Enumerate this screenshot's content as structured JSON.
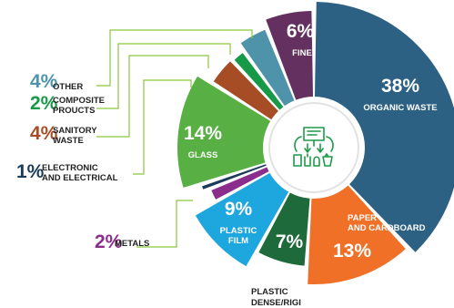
{
  "chart_data": {
    "type": "pie",
    "title": "",
    "slices": [
      {
        "label": "ORGANIC WASTE",
        "value": 38,
        "pct_text": "38%",
        "color": "#2d6184"
      },
      {
        "label": "PAPER AND CARDBOARD",
        "value": 13,
        "pct_text": "13%",
        "color": "#f07027"
      },
      {
        "label": "PLASTIC DENSE/RIGI",
        "value": 7,
        "pct_text": "7%",
        "color": "#1e6a3a"
      },
      {
        "label": "PLASTIC FILM",
        "value": 9,
        "pct_text": "9%",
        "color": "#1ea6df"
      },
      {
        "label": "METALS",
        "value": 2,
        "pct_text": "2%",
        "color": "#8a2d8c"
      },
      {
        "label": "ELECTRONIC AND ELECTRICAL",
        "value": 1,
        "pct_text": "1%",
        "color": "#1b3b5a"
      },
      {
        "label": "GLASS",
        "value": 14,
        "pct_text": "14%",
        "color": "#58b044"
      },
      {
        "label": "SANITORY WASTE",
        "value": 4,
        "pct_text": "4%",
        "color": "#a64d25"
      },
      {
        "label": "COMPOSITE PROUCTS",
        "value": 2,
        "pct_text": "2%",
        "color": "#169a48"
      },
      {
        "label": "OTHER",
        "value": 4,
        "pct_text": "4%",
        "color": "#4f93ab"
      },
      {
        "label": "FINE",
        "value": 6,
        "pct_text": "6%",
        "color": "#63305f"
      }
    ],
    "leader_line_color": "#8cc63f",
    "center_icon": "waste-sorting-icon",
    "icon_color": "#1e9a4a"
  }
}
